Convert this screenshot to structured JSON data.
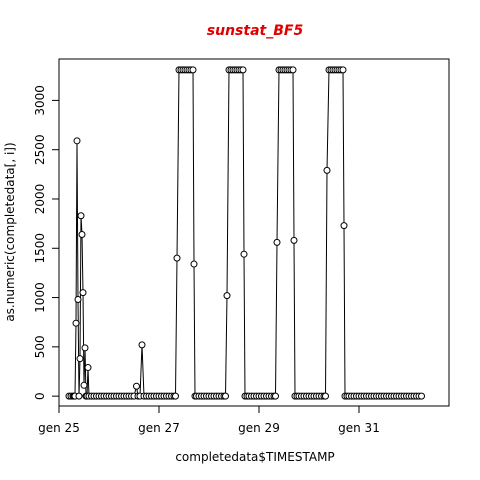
{
  "colors": {
    "title": "#e00000",
    "line": "#000000",
    "point_stroke": "#000000",
    "point_fill": "#ffffff"
  },
  "chart_data": {
    "type": "line",
    "title": "sunstat_BF5",
    "xlabel": "completedata$TIMESTAMP",
    "ylabel": "as.numeric(completedata[, i])",
    "xlim": [
      25.0,
      32.8
    ],
    "ylim": [
      -100,
      3420
    ],
    "x_ticks": [
      {
        "value": 25,
        "label": "gen 25"
      },
      {
        "value": 27,
        "label": "gen 27"
      },
      {
        "value": 29,
        "label": "gen 29"
      },
      {
        "value": 31,
        "label": "gen 31"
      }
    ],
    "y_ticks": [
      0,
      500,
      1000,
      1500,
      2000,
      2500,
      3000
    ],
    "grid": false,
    "point_style": "open-circle",
    "series": [
      {
        "points": [
          [
            25.2,
            0
          ],
          [
            25.24,
            0
          ],
          [
            25.28,
            0
          ],
          [
            25.3,
            0
          ],
          [
            25.32,
            0
          ],
          [
            25.34,
            740
          ],
          [
            25.36,
            2590
          ],
          [
            25.38,
            980
          ],
          [
            25.4,
            0
          ],
          [
            25.42,
            380
          ],
          [
            25.44,
            1830
          ],
          [
            25.46,
            1640
          ],
          [
            25.48,
            1050
          ],
          [
            25.5,
            110
          ],
          [
            25.52,
            490
          ],
          [
            25.54,
            0
          ],
          [
            25.56,
            0
          ],
          [
            25.58,
            290
          ],
          [
            25.6,
            0
          ],
          [
            25.65,
            0
          ],
          [
            25.7,
            0
          ],
          [
            25.75,
            0
          ],
          [
            25.8,
            0
          ],
          [
            25.85,
            0
          ],
          [
            25.9,
            0
          ],
          [
            25.95,
            0
          ],
          [
            26.0,
            0
          ],
          [
            26.05,
            0
          ],
          [
            26.1,
            0
          ],
          [
            26.15,
            0
          ],
          [
            26.2,
            0
          ],
          [
            26.25,
            0
          ],
          [
            26.3,
            0
          ],
          [
            26.35,
            0
          ],
          [
            26.4,
            0
          ],
          [
            26.45,
            0
          ],
          [
            26.5,
            0
          ],
          [
            26.55,
            100
          ],
          [
            26.58,
            0
          ],
          [
            26.62,
            0
          ],
          [
            26.66,
            520
          ],
          [
            26.7,
            0
          ],
          [
            26.75,
            0
          ],
          [
            26.8,
            0
          ],
          [
            26.85,
            0
          ],
          [
            26.9,
            0
          ],
          [
            26.95,
            0
          ],
          [
            27.0,
            0
          ],
          [
            27.05,
            0
          ],
          [
            27.1,
            0
          ],
          [
            27.15,
            0
          ],
          [
            27.2,
            0
          ],
          [
            27.25,
            0
          ],
          [
            27.3,
            0
          ],
          [
            27.33,
            0
          ],
          [
            27.36,
            1400
          ],
          [
            27.4,
            3310
          ],
          [
            27.44,
            3310
          ],
          [
            27.48,
            3310
          ],
          [
            27.52,
            3310
          ],
          [
            27.56,
            3310
          ],
          [
            27.6,
            3310
          ],
          [
            27.64,
            3310
          ],
          [
            27.68,
            3310
          ],
          [
            27.7,
            1340
          ],
          [
            27.72,
            0
          ],
          [
            27.75,
            0
          ],
          [
            27.8,
            0
          ],
          [
            27.85,
            0
          ],
          [
            27.9,
            0
          ],
          [
            27.95,
            0
          ],
          [
            28.0,
            0
          ],
          [
            28.05,
            0
          ],
          [
            28.1,
            0
          ],
          [
            28.15,
            0
          ],
          [
            28.2,
            0
          ],
          [
            28.25,
            0
          ],
          [
            28.3,
            0
          ],
          [
            28.33,
            0
          ],
          [
            28.36,
            1020
          ],
          [
            28.4,
            3310
          ],
          [
            28.44,
            3310
          ],
          [
            28.48,
            3310
          ],
          [
            28.52,
            3310
          ],
          [
            28.56,
            3310
          ],
          [
            28.6,
            3310
          ],
          [
            28.64,
            3310
          ],
          [
            28.68,
            3310
          ],
          [
            28.7,
            1440
          ],
          [
            28.72,
            0
          ],
          [
            28.76,
            0
          ],
          [
            28.8,
            0
          ],
          [
            28.85,
            0
          ],
          [
            28.9,
            0
          ],
          [
            28.95,
            0
          ],
          [
            29.0,
            0
          ],
          [
            29.05,
            0
          ],
          [
            29.1,
            0
          ],
          [
            29.15,
            0
          ],
          [
            29.2,
            0
          ],
          [
            29.25,
            0
          ],
          [
            29.3,
            0
          ],
          [
            29.33,
            0
          ],
          [
            29.36,
            1560
          ],
          [
            29.4,
            3310
          ],
          [
            29.44,
            3310
          ],
          [
            29.48,
            3310
          ],
          [
            29.52,
            3310
          ],
          [
            29.56,
            3310
          ],
          [
            29.6,
            3310
          ],
          [
            29.64,
            3310
          ],
          [
            29.68,
            3310
          ],
          [
            29.7,
            1580
          ],
          [
            29.72,
            0
          ],
          [
            29.76,
            0
          ],
          [
            29.8,
            0
          ],
          [
            29.85,
            0
          ],
          [
            29.9,
            0
          ],
          [
            29.95,
            0
          ],
          [
            30.0,
            0
          ],
          [
            30.05,
            0
          ],
          [
            30.1,
            0
          ],
          [
            30.15,
            0
          ],
          [
            30.2,
            0
          ],
          [
            30.25,
            0
          ],
          [
            30.3,
            0
          ],
          [
            30.33,
            0
          ],
          [
            30.36,
            2290
          ],
          [
            30.4,
            3310
          ],
          [
            30.44,
            3310
          ],
          [
            30.48,
            3310
          ],
          [
            30.52,
            3310
          ],
          [
            30.56,
            3310
          ],
          [
            30.6,
            3310
          ],
          [
            30.64,
            3310
          ],
          [
            30.68,
            3310
          ],
          [
            30.7,
            1730
          ],
          [
            30.72,
            0
          ],
          [
            30.76,
            0
          ],
          [
            30.8,
            0
          ],
          [
            30.85,
            0
          ],
          [
            30.9,
            0
          ],
          [
            30.95,
            0
          ],
          [
            31.0,
            0
          ],
          [
            31.05,
            0
          ],
          [
            31.1,
            0
          ],
          [
            31.15,
            0
          ],
          [
            31.2,
            0
          ],
          [
            31.25,
            0
          ],
          [
            31.3,
            0
          ],
          [
            31.35,
            0
          ],
          [
            31.4,
            0
          ],
          [
            31.45,
            0
          ],
          [
            31.5,
            0
          ],
          [
            31.55,
            0
          ],
          [
            31.6,
            0
          ],
          [
            31.65,
            0
          ],
          [
            31.7,
            0
          ],
          [
            31.75,
            0
          ],
          [
            31.8,
            0
          ],
          [
            31.85,
            0
          ],
          [
            31.9,
            0
          ],
          [
            31.95,
            0
          ],
          [
            32.0,
            0
          ],
          [
            32.05,
            0
          ],
          [
            32.1,
            0
          ],
          [
            32.15,
            0
          ],
          [
            32.2,
            0
          ],
          [
            32.25,
            0
          ]
        ]
      }
    ]
  }
}
